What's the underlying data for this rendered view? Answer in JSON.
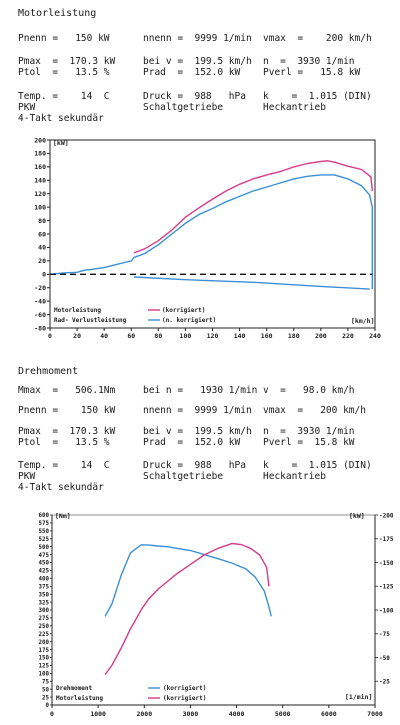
{
  "section1": {
    "heading": "Motorleistung",
    "rows": [
      [
        "Pnenn =   150 kW",
        "nnenn =  9999 1/min",
        "vmax  =    200 km/h"
      ],
      [
        "Pmax  =  170.3 kW",
        "bei v =  199.5 km/h",
        "n  =  3930 1/min"
      ],
      [
        "Ptol  =   13.5 %",
        "Prad  =  152.0 kW",
        "Pverl =   15.8 kW"
      ],
      [
        "Temp. =    14  C",
        "Druck =  988   hPa",
        "k    =  1.015 (DIN)"
      ],
      [
        "PKW",
        "Schaltgetriebe",
        "Heckantrieb"
      ]
    ],
    "line4": "4-Takt sekundär"
  },
  "section2": {
    "heading": "Drehmoment",
    "rows": [
      [
        "Mmax  =   506.1Nm",
        "bei n =   1930 1/min",
        "v  =   98.0 km/h"
      ],
      [
        "Pnenn =    150 kW",
        "nnenn =  9999 1/min",
        "vmax  =   200 km/h"
      ],
      [
        "Pmax  =  170.3 kW",
        "bei v =  199.5 km/h",
        "n  =  3930 1/min"
      ],
      [
        "Ptol  =   13.5 %",
        "Prad  =  152.0 kW",
        "Pverl =  15.8 kW"
      ],
      [
        "Temp. =    14  C",
        "Druck =  988   hPa",
        "k    =  1.015 (DIN)"
      ],
      [
        "PKW",
        "Schaltgetriebe",
        "Heckantrieb"
      ]
    ],
    "line4": "4-Takt sekundär"
  },
  "chart_data": [
    {
      "type": "line",
      "y_unit_label": "[kW]",
      "x_unit_label": "[km/h]",
      "xlim": [
        0,
        240
      ],
      "ylim": [
        -80,
        200
      ],
      "xticks": [
        "0",
        "20",
        "40",
        "60",
        "80",
        "100",
        "120",
        "140",
        "160",
        "180",
        "200",
        "220",
        "240"
      ],
      "yticks": [
        "200",
        "180",
        "160",
        "140",
        "120",
        "100",
        "80",
        "60",
        "40",
        "20",
        "0",
        "-20",
        "-40",
        "-60",
        "-80"
      ],
      "legend": [
        {
          "label": "Motorleistung",
          "sub": "(korrigiert)",
          "color": "#d63c8a"
        },
        {
          "label": "Rad- Verlustleistung",
          "sub": "(n. korrigiert)",
          "color": "#3a8fd8"
        }
      ],
      "series": [
        {
          "name": "korrigiert",
          "color": "#d63c8a",
          "x": [
            62,
            70,
            80,
            90,
            100,
            110,
            120,
            130,
            140,
            150,
            160,
            170,
            180,
            190,
            200,
            205,
            210,
            220,
            230,
            237,
            238
          ],
          "y": [
            32,
            38,
            50,
            66,
            85,
            99,
            112,
            124,
            134,
            142,
            148,
            153,
            160,
            165,
            168,
            169,
            167,
            161,
            156,
            145,
            124
          ]
        },
        {
          "name": "n. korrigiert",
          "color": "#3a8fd8",
          "x": [
            0,
            10,
            20,
            25,
            30,
            40,
            50,
            60,
            62,
            70,
            80,
            90,
            100,
            110,
            120,
            130,
            140,
            150,
            160,
            170,
            180,
            190,
            200,
            210,
            220,
            230,
            236,
            238
          ],
          "y": [
            0,
            2,
            3,
            6,
            7,
            10,
            15,
            20,
            25,
            31,
            44,
            60,
            76,
            89,
            98,
            108,
            116,
            124,
            130,
            136,
            142,
            146,
            148,
            148,
            142,
            132,
            118,
            100
          ]
        },
        {
          "name": "Verlust",
          "color": "#3a8fd8",
          "x": [
            62,
            100,
            150,
            200,
            236
          ],
          "y": [
            -4,
            -8,
            -12,
            -18,
            -22
          ]
        },
        {
          "name": "Verlust-Ende",
          "color": "#3a8fd8",
          "x": [
            238,
            238
          ],
          "y": [
            100,
            -22
          ]
        },
        {
          "name": "Nulllinie",
          "color": "#111111",
          "dashed": true,
          "x": [
            0,
            238
          ],
          "y": [
            0,
            0
          ]
        }
      ]
    },
    {
      "type": "line",
      "y_unit_label": "[Nm]",
      "y2_unit_label": "[kW]",
      "x_unit_label": "[1/min]",
      "xlim": [
        0,
        7000
      ],
      "ylim": [
        0,
        600
      ],
      "y2lim": [
        0,
        200
      ],
      "xticks": [
        "0",
        "1000",
        "2000",
        "3000",
        "4000",
        "5000",
        "6000",
        "7000"
      ],
      "yticks": [
        "600",
        "575",
        "550",
        "525",
        "500",
        "475",
        "450",
        "425",
        "400",
        "375",
        "350",
        "325",
        "300",
        "275",
        "250",
        "225",
        "200",
        "175",
        "150",
        "125",
        "100",
        "75",
        "50",
        "25",
        "0"
      ],
      "y2ticks": [
        "200",
        "175",
        "150",
        "125",
        "100",
        "75",
        "50",
        "25"
      ],
      "legend": [
        {
          "label": "Drehmoment",
          "sub": "(korrigiert)",
          "color": "#3a8fd8"
        },
        {
          "label": "Motorleistung",
          "sub": "(korrigiert)",
          "color": "#d63c8a"
        }
      ],
      "series": [
        {
          "name": "Drehmoment",
          "color": "#3a8fd8",
          "axis": "left",
          "x": [
            1150,
            1300,
            1500,
            1700,
            1930,
            2100,
            2300,
            2500,
            2700,
            3000,
            3300,
            3600,
            3900,
            4200,
            4400,
            4600,
            4700,
            4750
          ],
          "y": [
            280,
            320,
            410,
            480,
            506,
            505,
            502,
            500,
            495,
            488,
            475,
            462,
            448,
            430,
            405,
            360,
            310,
            280
          ]
        },
        {
          "name": "Motorleistung",
          "color": "#d63c8a",
          "axis": "right",
          "x": [
            1150,
            1300,
            1500,
            1700,
            1930,
            2100,
            2300,
            2500,
            2700,
            3000,
            3300,
            3600,
            3900,
            4100,
            4300,
            4500,
            4650,
            4700
          ],
          "y": [
            32,
            42,
            60,
            80,
            100,
            112,
            122,
            130,
            138,
            148,
            158,
            165,
            170,
            169,
            165,
            158,
            145,
            125
          ]
        }
      ]
    }
  ]
}
